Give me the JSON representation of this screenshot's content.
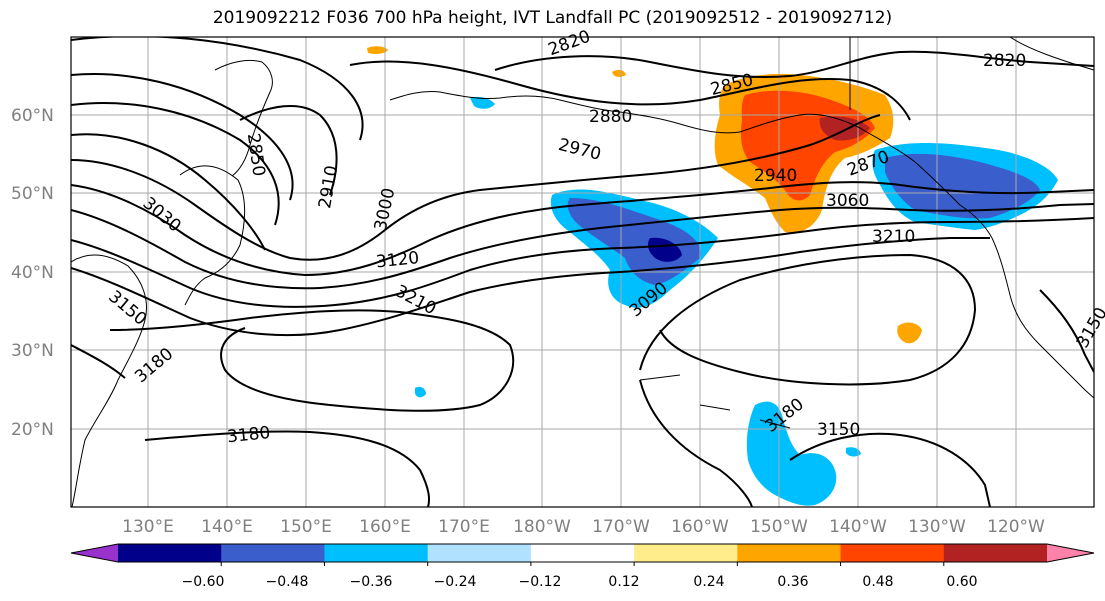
{
  "title": "2019092212 F036 700 hPa height, IVT Landfall PC (2019092512 - 2019092712)",
  "lat_labels": [
    "60°N",
    "50°N",
    "40°N",
    "30°N",
    "20°N"
  ],
  "lon_labels": [
    "130°E",
    "140°E",
    "150°E",
    "160°E",
    "170°E",
    "180°W",
    "170°W",
    "160°W",
    "150°W",
    "140°W",
    "130°W",
    "120°W"
  ],
  "contour_labels": [
    "2820",
    "2850",
    "2880",
    "2970",
    "2940",
    "2870",
    "3060",
    "3210",
    "2850",
    "2910",
    "3000",
    "3030",
    "3120",
    "3090",
    "3150",
    "3210",
    "3180",
    "3180",
    "3180",
    "3150",
    "3150",
    "2820"
  ],
  "colorbar": {
    "ticks": [
      "−0.60",
      "−0.48",
      "−0.36",
      "−0.24",
      "−0.12",
      "0.12",
      "0.24",
      "0.36",
      "0.48",
      "0.60"
    ],
    "colors": [
      "#9932cc",
      "#00008b",
      "#3a5fcd",
      "#00bfff",
      "#b0e2ff",
      "#ffffff",
      "#ffec8b",
      "#ffa500",
      "#ff4500",
      "#b22222",
      "#ff82ab"
    ]
  }
}
